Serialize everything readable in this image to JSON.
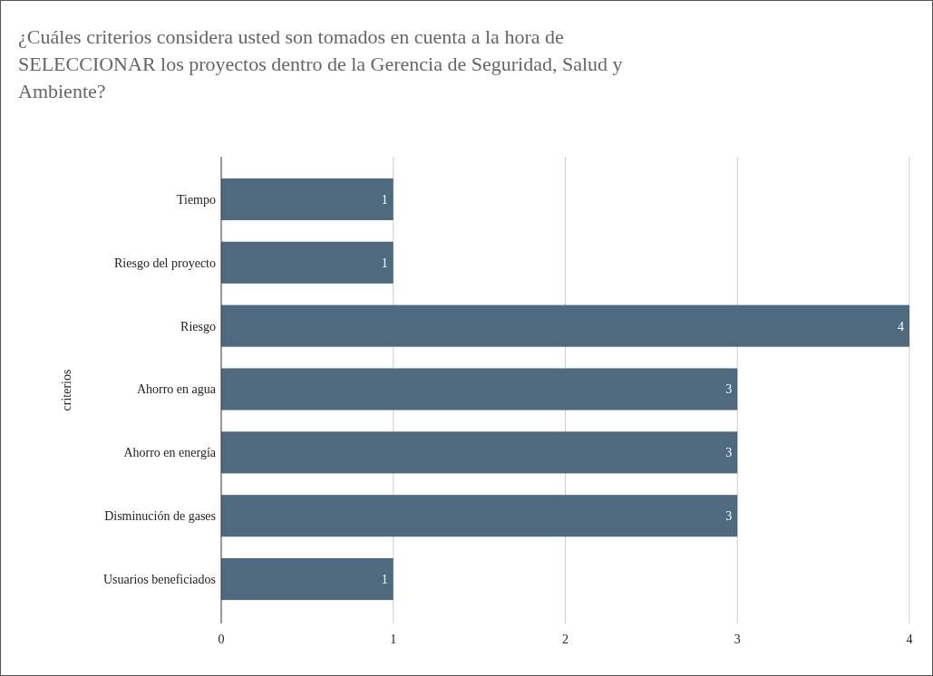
{
  "chart_data": {
    "type": "bar",
    "orientation": "horizontal",
    "title": "¿Cuáles criterios considera usted son tomados en cuenta a la hora de SELECCIONAR los proyectos dentro de la Gerencia de Seguridad, Salud y Ambiente?",
    "ylabel": "criterios",
    "categories": [
      "Tiempo",
      "Riesgo del proyecto",
      "Riesgo",
      "Ahorro en agua",
      "Ahorro en energía",
      "Disminución de gases",
      "Usuarios beneficiados"
    ],
    "values": [
      1,
      1,
      4,
      3,
      3,
      3,
      1
    ],
    "color": "#4f6a7e",
    "xlim": [
      0,
      4
    ],
    "xticks": [
      0,
      1,
      2,
      3,
      4
    ],
    "grid": "x",
    "data_labels": true
  }
}
